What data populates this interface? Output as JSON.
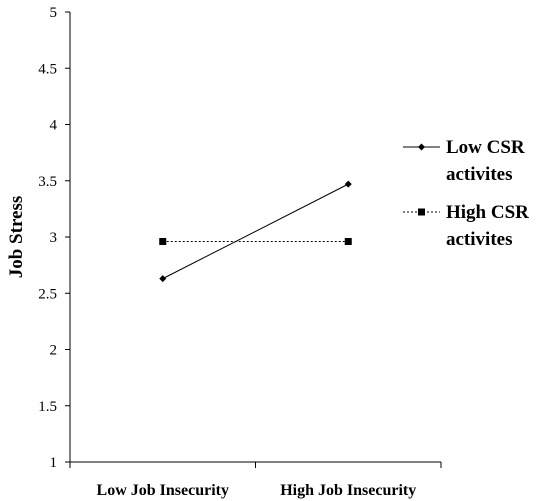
{
  "chart_data": {
    "type": "line",
    "title": "",
    "xlabel": "",
    "ylabel": "Job  Stress",
    "categories": [
      "Low Job Insecurity",
      "High Job Insecurity"
    ],
    "ylim": [
      1,
      5
    ],
    "yticks": [
      "1",
      "1.5",
      "2",
      "2.5",
      "3",
      "3.5",
      "4",
      "4.5",
      "5"
    ],
    "grid": false,
    "legend_position": "right",
    "series": [
      {
        "name_lines": [
          "Low CSR",
          "activites"
        ],
        "values": [
          2.63,
          3.47
        ],
        "marker": "diamond",
        "line_style": "solid",
        "color": "#000000"
      },
      {
        "name_lines": [
          "High CSR",
          "activites"
        ],
        "values": [
          2.96,
          2.96
        ],
        "marker": "square",
        "line_style": "dotted",
        "color": "#000000"
      }
    ]
  }
}
